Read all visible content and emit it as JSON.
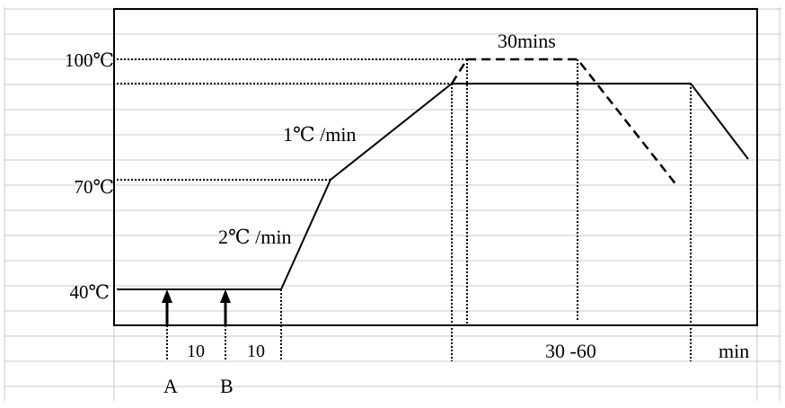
{
  "y_labels": {
    "t100": "100℃",
    "t70": "70℃",
    "t40": "40℃"
  },
  "rate_labels": {
    "fast": "2℃ /min",
    "slow": "1℃ /min"
  },
  "hold_label": "30mins",
  "x_labels": {
    "d1": "10",
    "d2": "10",
    "d3": "30 -60",
    "unit": "min"
  },
  "points": {
    "a": "A",
    "b": "B"
  }
}
